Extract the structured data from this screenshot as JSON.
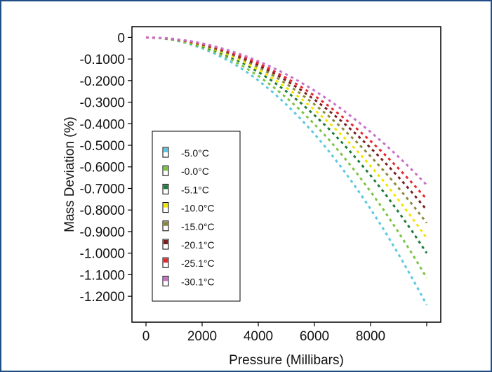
{
  "chart_data": {
    "type": "line",
    "title": "",
    "xlabel": "Pressure (Millibars)",
    "ylabel": "Mass Deviation (%)",
    "xlim": [
      -500,
      10500
    ],
    "ylim": [
      -1.32,
      0.05
    ],
    "xticks": [
      0,
      2000,
      4000,
      6000,
      8000,
      10000
    ],
    "xtick_labels": [
      "0",
      "2000",
      "4000",
      "6000",
      "8000",
      ""
    ],
    "yticks": [
      0,
      -0.1,
      -0.2,
      -0.3,
      -0.4,
      -0.5,
      -0.6,
      -0.7,
      -0.8,
      -0.9,
      -1.0,
      -1.1,
      -1.2
    ],
    "ytick_labels": [
      "0",
      "-0.1000",
      "-0.2000",
      "-0.3000",
      "-0.4000",
      "-0.5000",
      "-0.6000",
      "-0.7000",
      "-0.8000",
      "-0.9000",
      "-1.0000",
      "-1.1000",
      "-1.2000"
    ],
    "grid": false,
    "legend_position": "bottom-left",
    "line_style": "dashed",
    "x": [
      0,
      500,
      1000,
      1500,
      2000,
      2500,
      3000,
      3500,
      4000,
      4500,
      5000,
      5500,
      6000,
      6500,
      7000,
      7500,
      8000,
      8500,
      9000,
      9500,
      10000
    ],
    "series": [
      {
        "name": "-5.0°C",
        "color": "#5bc8e0",
        "values": [
          0,
          -0.003,
          -0.012,
          -0.028,
          -0.05,
          -0.078,
          -0.112,
          -0.152,
          -0.199,
          -0.252,
          -0.311,
          -0.376,
          -0.447,
          -0.525,
          -0.609,
          -0.699,
          -0.795,
          -0.897,
          -1.006,
          -1.12,
          -1.24
        ]
      },
      {
        "name": "-0.0°C",
        "color": "#7cc443",
        "values": [
          0,
          -0.003,
          -0.011,
          -0.025,
          -0.045,
          -0.07,
          -0.1,
          -0.137,
          -0.178,
          -0.226,
          -0.279,
          -0.337,
          -0.402,
          -0.471,
          -0.547,
          -0.628,
          -0.714,
          -0.806,
          -0.904,
          -1.007,
          -1.115
        ]
      },
      {
        "name": "-5.1°C",
        "color": "#1e7a3c",
        "values": [
          0,
          -0.002,
          -0.01,
          -0.022,
          -0.04,
          -0.062,
          -0.09,
          -0.122,
          -0.16,
          -0.202,
          -0.25,
          -0.302,
          -0.36,
          -0.422,
          -0.49,
          -0.562,
          -0.64,
          -0.722,
          -0.81,
          -0.902,
          -1.0
        ]
      },
      {
        "name": "-10.0°C",
        "color": "#f2e600",
        "values": [
          0,
          -0.002,
          -0.009,
          -0.021,
          -0.037,
          -0.058,
          -0.084,
          -0.114,
          -0.149,
          -0.188,
          -0.233,
          -0.281,
          -0.335,
          -0.393,
          -0.456,
          -0.523,
          -0.596,
          -0.672,
          -0.754,
          -0.84,
          -0.93
        ]
      },
      {
        "name": "-15.0°C",
        "color": "#8c8a3a",
        "values": [
          0,
          -0.002,
          -0.008,
          -0.019,
          -0.034,
          -0.054,
          -0.077,
          -0.105,
          -0.138,
          -0.174,
          -0.215,
          -0.26,
          -0.31,
          -0.364,
          -0.422,
          -0.484,
          -0.551,
          -0.622,
          -0.698,
          -0.777,
          -0.86
        ]
      },
      {
        "name": "-20.1°C",
        "color": "#7a1e1e",
        "values": [
          0,
          -0.002,
          -0.008,
          -0.018,
          -0.032,
          -0.05,
          -0.072,
          -0.098,
          -0.128,
          -0.162,
          -0.2,
          -0.242,
          -0.288,
          -0.338,
          -0.392,
          -0.45,
          -0.512,
          -0.578,
          -0.648,
          -0.722,
          -0.8
        ]
      },
      {
        "name": "-25.1°C",
        "color": "#e8262b",
        "values": [
          0,
          -0.002,
          -0.007,
          -0.017,
          -0.03,
          -0.047,
          -0.068,
          -0.092,
          -0.12,
          -0.152,
          -0.188,
          -0.227,
          -0.27,
          -0.317,
          -0.368,
          -0.422,
          -0.48,
          -0.542,
          -0.608,
          -0.677,
          -0.75
        ]
      },
      {
        "name": "-30.1°C",
        "color": "#c86fc8",
        "values": [
          0,
          -0.002,
          -0.007,
          -0.015,
          -0.027,
          -0.043,
          -0.062,
          -0.084,
          -0.11,
          -0.139,
          -0.171,
          -0.207,
          -0.246,
          -0.289,
          -0.335,
          -0.385,
          -0.438,
          -0.494,
          -0.554,
          -0.617,
          -0.684
        ]
      }
    ]
  }
}
